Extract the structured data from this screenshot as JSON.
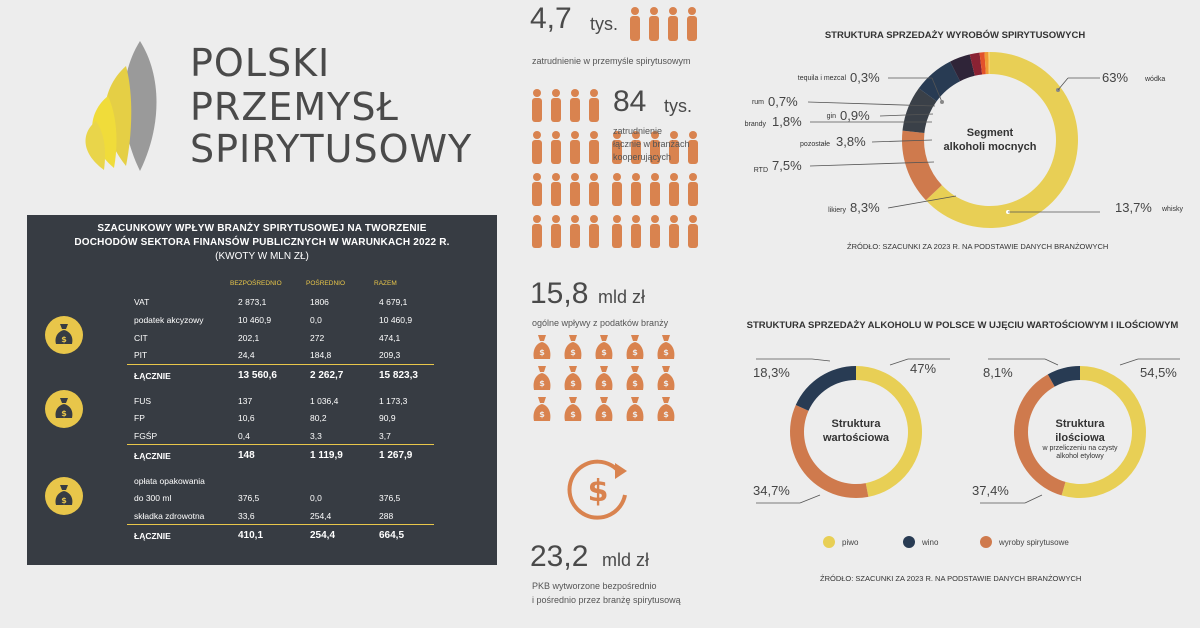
{
  "logo": {
    "line1": "POLSKI",
    "line2": "PRZEMYSŁ",
    "line3": "SPIRYTUSOWY"
  },
  "table": {
    "title1": "SZACUNKOWY WPŁYW BRANŻY SPIRYTUSOWEJ NA TWORZENIE",
    "title2": "DOCHODÓW SEKTORA FINANSÓW PUBLICZNYCH W WARUNKACH 2022 R.",
    "subtitle": "(KWOTY W MLN ZŁ)",
    "col_direct": "BEZPOŚREDNIO",
    "col_indirect": "POŚREDNIO",
    "col_total": "RAZEM",
    "group1": {
      "rows": [
        {
          "label": "VAT",
          "direct": "2 873,1",
          "indirect": "1806",
          "total": "4 679,1"
        },
        {
          "label": "podatek akcyzowy",
          "direct": "10 460,9",
          "indirect": "0,0",
          "total": "10 460,9"
        },
        {
          "label": "CIT",
          "direct": "202,1",
          "indirect": "272",
          "total": "474,1"
        },
        {
          "label": "PIT",
          "direct": "24,4",
          "indirect": "184,8",
          "total": "209,3"
        }
      ],
      "total": {
        "label": "ŁĄCZNIE",
        "direct": "13 560,6",
        "indirect": "2 262,7",
        "total": "15 823,3"
      }
    },
    "group2": {
      "rows": [
        {
          "label": "FUS",
          "direct": "137",
          "indirect": "1 036,4",
          "total": "1 173,3"
        },
        {
          "label": "FP",
          "direct": "10,6",
          "indirect": "80,2",
          "total": "90,9"
        },
        {
          "label": "FGŚP",
          "direct": "0,4",
          "indirect": "3,3",
          "total": "3,7"
        }
      ],
      "total": {
        "label": "ŁĄCZNIE",
        "direct": "148",
        "indirect": "1 119,9",
        "total": "1 267,9"
      }
    },
    "group3": {
      "header": "opłata opakowania",
      "rows": [
        {
          "label": "do 300 ml",
          "direct": "376,5",
          "indirect": "0,0",
          "total": "376,5"
        },
        {
          "label": "składka zdrowotna",
          "direct": "33,6",
          "indirect": "254,4",
          "total": "288"
        }
      ],
      "total": {
        "label": "ŁĄCZNIE",
        "direct": "410,1",
        "indirect": "254,4",
        "total": "664,5"
      }
    }
  },
  "stats": {
    "employment": {
      "value": "4,7",
      "unit": "tys.",
      "desc": "zatrudnienie w przemyśle spirytusowym"
    },
    "cooperating": {
      "value": "84",
      "unit": "tys.",
      "desc1": "zatrudnienie",
      "desc2": "łącznie w branżach",
      "desc3": "kooperujących"
    },
    "taxes": {
      "value": "15,8",
      "unit": "mld zł",
      "desc": "ogólne wpływy z podatków branży"
    },
    "gdp": {
      "value": "23,2",
      "unit": "mld zł",
      "desc1": "PKB wytworzone bezpośrednio",
      "desc2": "i pośrednio przez branżę spirytusową"
    }
  },
  "colors": {
    "yellow": "#e8cf55",
    "navy": "#283b53",
    "orange": "#cf7a4d",
    "dark_panel": "#373c43"
  },
  "chart_data": [
    {
      "type": "pie",
      "title": "STRUKTURA SPRZEDAŻY WYROBÓW SPIRYTUSOWYCH",
      "center_label": [
        "Segment",
        "alkoholi mocnych"
      ],
      "source": "ŹRÓDŁO: SZACUNKI ZA 2023 R. NA PODSTAWIE DANYCH BRANŻOWYCH",
      "slices": [
        {
          "name": "wódka",
          "value": 63,
          "label": "63%",
          "color": "#e8cf55"
        },
        {
          "name": "whisky",
          "value": 13.7,
          "label": "13,7%",
          "color": "#cf7a4d"
        },
        {
          "name": "likiery",
          "value": 8.3,
          "label": "8,3%",
          "color": "#3a4048"
        },
        {
          "name": "RTD",
          "value": 7.5,
          "label": "7,5%",
          "color": "#283b53"
        },
        {
          "name": "pozostałe",
          "value": 3.8,
          "label": "3,8%",
          "color": "#2f2438"
        },
        {
          "name": "brandy",
          "value": 1.8,
          "label": "1,8%",
          "color": "#8a2233"
        },
        {
          "name": "gin",
          "value": 0.9,
          "label": "0,9%",
          "color": "#e2522b"
        },
        {
          "name": "rum",
          "value": 0.7,
          "label": "0,7%",
          "color": "#f09a35"
        },
        {
          "name": "tequila i mezcal",
          "value": 0.3,
          "label": "0,3%",
          "color": "#f5d36b"
        }
      ]
    },
    {
      "type": "pie",
      "title": "STRUKTURA SPRZEDAŻY ALKOHOLU W POLSCE W UJĘCIU WARTOŚCIOWYM I ILOŚCIOWYM",
      "center_label": [
        "Struktura",
        "wartościowa"
      ],
      "slices": [
        {
          "name": "piwo",
          "value": 47,
          "label": "47%",
          "color": "#e8cf55"
        },
        {
          "name": "wyroby spirytusowe",
          "value": 34.7,
          "label": "34,7%",
          "color": "#cf7a4d"
        },
        {
          "name": "wino",
          "value": 18.3,
          "label": "18,3%",
          "color": "#283b53"
        }
      ]
    },
    {
      "type": "pie",
      "center_label": [
        "Struktura",
        "ilościowa"
      ],
      "center_sub": [
        "w przeliczeniu na czysty",
        "alkohol etylowy"
      ],
      "slices": [
        {
          "name": "piwo",
          "value": 54.5,
          "label": "54,5%",
          "color": "#e8cf55"
        },
        {
          "name": "wyroby spirytusowe",
          "value": 37.4,
          "label": "37,4%",
          "color": "#cf7a4d"
        },
        {
          "name": "wino",
          "value": 8.1,
          "label": "8,1%",
          "color": "#283b53"
        }
      ],
      "legend": [
        "piwo",
        "wino",
        "wyroby spirytusowe"
      ],
      "source": "ŹRÓDŁO: SZACUNKI ZA 2023 R. NA PODSTAWIE DANYCH BRANŻOWYCH"
    }
  ]
}
